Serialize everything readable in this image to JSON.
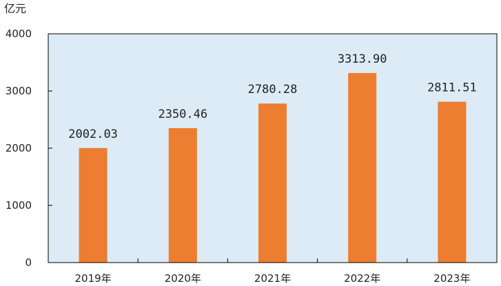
{
  "chart_data": {
    "type": "bar",
    "unit": "亿元",
    "categories": [
      "2019年",
      "2020年",
      "2021年",
      "2022年",
      "2023年"
    ],
    "values": [
      2002.03,
      2350.46,
      2780.28,
      3313.9,
      2811.51
    ],
    "value_labels": [
      "2002.03",
      "2350.46",
      "2780.28",
      "3313.90",
      "2811.51"
    ],
    "yticks": [
      "0",
      "1000",
      "2000",
      "3000",
      "4000"
    ],
    "ylim": [
      0,
      4000
    ],
    "grid": false,
    "legend": "none",
    "colors": {
      "bar": "#ED7D31",
      "plot_background": "#DCEBF5",
      "axis": "#000000"
    }
  }
}
